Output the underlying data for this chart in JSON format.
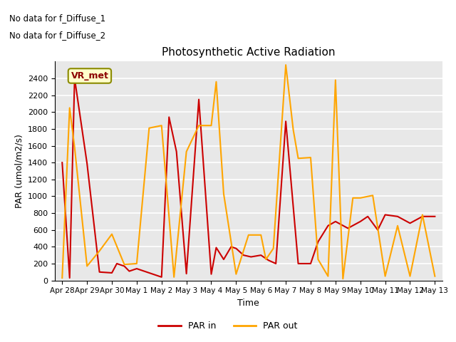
{
  "title": "Photosynthetic Active Radiation",
  "xlabel": "Time",
  "ylabel": "PAR (umol/m2/s)",
  "annotation1": "No data for f_Diffuse_1",
  "annotation2": "No data for f_Diffuse_2",
  "box_label": "VR_met",
  "legend": [
    "PAR in",
    "PAR out"
  ],
  "par_in_color": "#cc0000",
  "par_out_color": "#ffa500",
  "background_color": "#e8e8e8",
  "ylim": [
    0,
    2600
  ],
  "yticks": [
    0,
    200,
    400,
    600,
    800,
    1000,
    1200,
    1400,
    1600,
    1800,
    2000,
    2200,
    2400
  ],
  "xtick_labels": [
    "Apr 28",
    "Apr 29",
    "Apr 30",
    "May 1",
    "May 2",
    "May 3",
    "May 4",
    "May 5",
    "May 6",
    "May 7",
    "May 8",
    "May 9",
    "May 10",
    "May 11",
    "May 12",
    "May 13"
  ],
  "par_in_x": [
    0,
    0.3,
    0.5,
    1.0,
    1.5,
    2.0,
    2.2,
    2.5,
    2.7,
    3.0,
    3.3,
    3.6,
    4.0,
    4.3,
    4.6,
    5.0,
    5.5,
    6.0,
    6.2,
    6.5,
    6.8,
    7.0,
    7.3,
    7.6,
    8.0,
    8.3,
    8.6,
    9.0,
    9.5,
    10.0,
    10.3,
    10.7,
    11.0,
    11.5,
    12.0,
    12.3,
    12.7,
    13.0,
    13.5,
    14.0,
    14.5,
    15.0
  ],
  "par_in_y": [
    1400,
    30,
    2400,
    1390,
    100,
    90,
    200,
    170,
    110,
    140,
    110,
    80,
    40,
    1940,
    1530,
    80,
    2150,
    75,
    390,
    250,
    400,
    380,
    300,
    280,
    300,
    240,
    200,
    1890,
    200,
    200,
    460,
    650,
    700,
    620,
    700,
    760,
    600,
    780,
    760,
    680,
    760,
    760
  ],
  "par_out_x": [
    0,
    0.3,
    0.5,
    1.0,
    1.5,
    2.0,
    2.5,
    3.0,
    3.5,
    4.0,
    4.5,
    5.0,
    5.5,
    6.0,
    6.2,
    6.5,
    7.0,
    7.5,
    8.0,
    8.2,
    8.5,
    9.0,
    9.3,
    9.5,
    10.0,
    10.3,
    10.7,
    11.0,
    11.3,
    11.7,
    12.0,
    12.5,
    13.0,
    13.5,
    14.0,
    14.5,
    15.0
  ],
  "par_out_y": [
    30,
    2050,
    1580,
    170,
    350,
    550,
    190,
    200,
    1810,
    1840,
    40,
    1530,
    1840,
    1840,
    2360,
    1030,
    75,
    540,
    540,
    250,
    380,
    2560,
    1790,
    1450,
    1460,
    250,
    50,
    2380,
    20,
    980,
    980,
    1010,
    50,
    650,
    50,
    780,
    50
  ]
}
